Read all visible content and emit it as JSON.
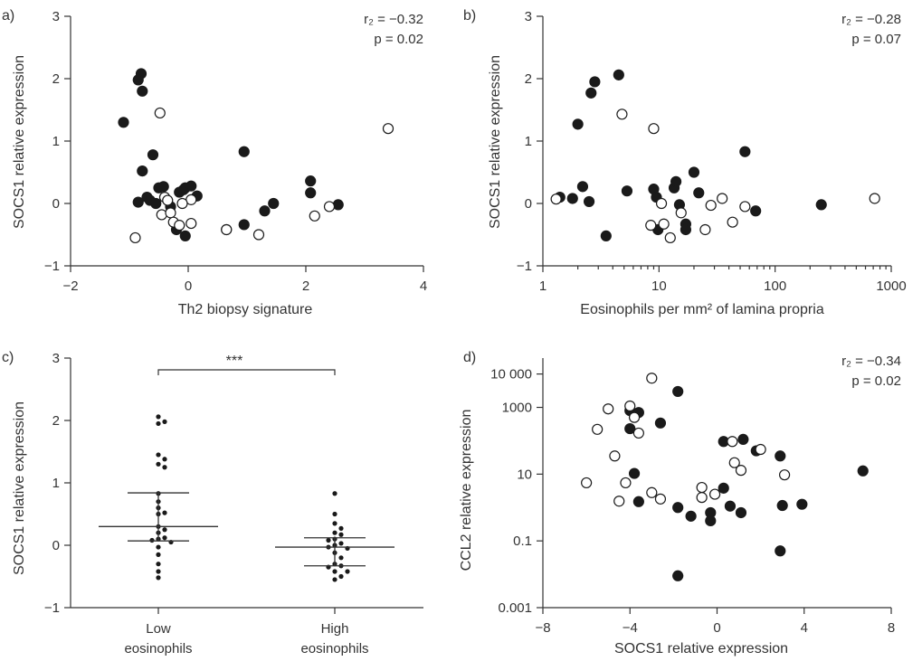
{
  "chart_data": [
    {
      "type": "scatter",
      "panel_label": "a)",
      "xlabel": "Th2 biopsy signature",
      "ylabel": "SOCS1 relative expression",
      "xlim": [
        -2,
        4
      ],
      "ylim": [
        -1,
        3
      ],
      "x_ticks": [
        -2,
        0,
        2,
        4
      ],
      "y_ticks": [
        -1,
        0,
        1,
        2,
        3
      ],
      "x_tick_labels": [
        "−2",
        "0",
        "2",
        "4"
      ],
      "y_tick_labels": [
        "−1",
        "0",
        "1",
        "2",
        "3"
      ],
      "stats": [
        "r₂ = −0.32",
        "p = 0.02"
      ],
      "series": [
        {
          "marker": "filled",
          "points": [
            [
              -0.8,
              2.08
            ],
            [
              -0.85,
              1.98
            ],
            [
              -0.78,
              1.8
            ],
            [
              -1.1,
              1.3
            ],
            [
              -0.6,
              0.78
            ],
            [
              -0.78,
              0.52
            ],
            [
              -0.5,
              0.25
            ],
            [
              -0.42,
              0.27
            ],
            [
              -0.15,
              0.18
            ],
            [
              -0.08,
              0.22
            ],
            [
              -0.05,
              0.25
            ],
            [
              0.05,
              0.28
            ],
            [
              0.15,
              0.12
            ],
            [
              -0.7,
              0.1
            ],
            [
              -0.65,
              0.05
            ],
            [
              -0.55,
              0.0
            ],
            [
              -0.85,
              0.02
            ],
            [
              -0.3,
              -0.05
            ],
            [
              -0.2,
              -0.42
            ],
            [
              -0.05,
              -0.52
            ],
            [
              0.95,
              0.83
            ],
            [
              2.08,
              0.36
            ],
            [
              2.08,
              0.17
            ],
            [
              1.45,
              0.0
            ],
            [
              1.3,
              -0.12
            ],
            [
              2.55,
              -0.02
            ],
            [
              0.95,
              -0.34
            ],
            [
              0.65,
              -0.42
            ]
          ]
        },
        {
          "marker": "open",
          "points": [
            [
              -0.48,
              1.45
            ],
            [
              3.4,
              1.2
            ],
            [
              -0.9,
              -0.55
            ],
            [
              -0.45,
              -0.18
            ],
            [
              -0.3,
              -0.15
            ],
            [
              -0.25,
              -0.3
            ],
            [
              -0.15,
              -0.35
            ],
            [
              0.05,
              -0.32
            ],
            [
              0.05,
              0.06
            ],
            [
              -0.1,
              0.0
            ],
            [
              -0.4,
              0.1
            ],
            [
              -0.35,
              0.05
            ],
            [
              0.65,
              -0.42
            ],
            [
              1.2,
              -0.5
            ],
            [
              2.15,
              -0.2
            ],
            [
              2.4,
              -0.05
            ]
          ]
        }
      ]
    },
    {
      "type": "scatter",
      "panel_label": "b)",
      "xlabel": "Eosinophils per mm² of lamina propria",
      "ylabel": "SOCS1 relative expression",
      "xscale": "log",
      "xlim": [
        1,
        1000
      ],
      "ylim": [
        -1,
        3
      ],
      "x_ticks": [
        1,
        10,
        100,
        1000
      ],
      "y_ticks": [
        -1,
        0,
        1,
        2,
        3
      ],
      "x_tick_labels": [
        "1",
        "10",
        "100",
        "1000"
      ],
      "y_tick_labels": [
        "−1",
        "0",
        "1",
        "2",
        "3"
      ],
      "stats": [
        "r₂ = −0.28",
        "p = 0.07"
      ],
      "series": [
        {
          "marker": "filled",
          "points": [
            [
              4.5,
              2.06
            ],
            [
              2.8,
              1.95
            ],
            [
              2.6,
              1.77
            ],
            [
              2.0,
              1.27
            ],
            [
              2.2,
              0.27
            ],
            [
              5.3,
              0.2
            ],
            [
              1.4,
              0.1
            ],
            [
              1.8,
              0.08
            ],
            [
              2.5,
              0.03
            ],
            [
              3.5,
              -0.52
            ],
            [
              9.0,
              0.23
            ],
            [
              9.5,
              0.1
            ],
            [
              13.5,
              0.25
            ],
            [
              14.0,
              0.35
            ],
            [
              20.0,
              0.5
            ],
            [
              22.0,
              0.17
            ],
            [
              55.0,
              0.83
            ],
            [
              9.8,
              -0.42
            ],
            [
              15.0,
              -0.02
            ],
            [
              17.0,
              -0.33
            ],
            [
              17.0,
              -0.42
            ],
            [
              68.0,
              -0.12
            ],
            [
              250.0,
              -0.02
            ]
          ]
        },
        {
          "marker": "open",
          "points": [
            [
              4.8,
              1.43
            ],
            [
              9.0,
              1.2
            ],
            [
              1.3,
              0.07
            ],
            [
              8.5,
              -0.35
            ],
            [
              11.0,
              -0.33
            ],
            [
              10.5,
              0.0
            ],
            [
              12.5,
              -0.55
            ],
            [
              15.5,
              -0.15
            ],
            [
              25.0,
              -0.42
            ],
            [
              28.0,
              -0.03
            ],
            [
              35.0,
              0.08
            ],
            [
              43.0,
              -0.3
            ],
            [
              55.0,
              -0.05
            ],
            [
              720.0,
              0.08
            ]
          ]
        }
      ]
    },
    {
      "type": "scatter",
      "panel_label": "c)",
      "ylabel": "SOCS1 relative expression",
      "ylim": [
        -1,
        3
      ],
      "y_ticks": [
        -1,
        0,
        1,
        2,
        3
      ],
      "y_tick_labels": [
        "−1",
        "0",
        "1",
        "2",
        "3"
      ],
      "categories": [
        "Low\neosinophils",
        "High\neosinophils"
      ],
      "significance": "***",
      "series": [
        {
          "category": "Low\neosinophils",
          "mean": 0.3,
          "upper": 0.84,
          "lower": 0.07,
          "values": [
            2.06,
            1.98,
            1.95,
            1.45,
            1.38,
            1.3,
            1.25,
            0.83,
            0.7,
            0.6,
            0.52,
            0.5,
            0.3,
            0.25,
            0.2,
            0.12,
            0.1,
            0.08,
            0.05,
            -0.03,
            -0.15,
            -0.3,
            -0.42,
            -0.52
          ]
        },
        {
          "category": "High\neosinophils",
          "mean": -0.03,
          "upper": 0.12,
          "lower": -0.33,
          "values": [
            0.83,
            0.5,
            0.35,
            0.27,
            0.2,
            0.17,
            0.1,
            0.08,
            0.03,
            0.0,
            -0.03,
            -0.05,
            -0.12,
            -0.2,
            -0.3,
            -0.33,
            -0.35,
            -0.42,
            -0.42,
            -0.5,
            -0.55
          ]
        }
      ]
    },
    {
      "type": "scatter",
      "panel_label": "d)",
      "xlabel": "SOCS1 relative expression",
      "ylabel": "CCL2 relative expression",
      "yscale": "log",
      "xlim": [
        -8,
        8
      ],
      "ylim": [
        0.001,
        30000
      ],
      "x_ticks": [
        -8,
        -4,
        0,
        4,
        8
      ],
      "y_ticks": [
        0.001,
        0.1,
        10,
        1000,
        10000
      ],
      "x_tick_labels": [
        "−8",
        "−4",
        "0",
        "4",
        "8"
      ],
      "y_tick_labels": [
        "0.001",
        "0.1",
        "10",
        "1000",
        "10 000"
      ],
      "stats": [
        "r₂ = −0.34",
        "p = 0.02"
      ],
      "series": [
        {
          "marker": "filled",
          "points": [
            [
              -1.8,
              3000
            ],
            [
              -2.6,
              340
            ],
            [
              -4.0,
              800
            ],
            [
              -3.6,
              700
            ],
            [
              -4.0,
              230
            ],
            [
              -3.8,
              10.5
            ],
            [
              -3.6,
              1.5
            ],
            [
              -1.8,
              1.0
            ],
            [
              -1.2,
              0.55
            ],
            [
              -0.3,
              0.7
            ],
            [
              -0.3,
              0.4
            ],
            [
              0.3,
              95
            ],
            [
              0.3,
              3.8
            ],
            [
              0.6,
              1.1
            ],
            [
              1.1,
              0.7
            ],
            [
              1.2,
              110
            ],
            [
              1.8,
              50
            ],
            [
              2.9,
              35
            ],
            [
              3.0,
              1.15
            ],
            [
              3.9,
              1.25
            ],
            [
              6.7,
              12.5
            ],
            [
              2.9,
              0.05
            ],
            [
              -1.8,
              0.009
            ]
          ]
        },
        {
          "marker": "open",
          "points": [
            [
              -3.0,
              7500
            ],
            [
              -5.0,
              900
            ],
            [
              -5.5,
              220
            ],
            [
              -4.0,
              1100
            ],
            [
              -3.8,
              500
            ],
            [
              -3.6,
              170
            ],
            [
              -4.7,
              35
            ],
            [
              -6.0,
              5.5
            ],
            [
              -4.2,
              5.5
            ],
            [
              -3.0,
              2.8
            ],
            [
              -2.6,
              1.8
            ],
            [
              -4.5,
              1.55
            ],
            [
              -0.7,
              4.0
            ],
            [
              -0.7,
              2.0
            ],
            [
              -0.1,
              2.5
            ],
            [
              0.7,
              95
            ],
            [
              0.8,
              22
            ],
            [
              1.1,
              13
            ],
            [
              2.0,
              55
            ],
            [
              3.1,
              9.5
            ]
          ]
        }
      ]
    }
  ]
}
